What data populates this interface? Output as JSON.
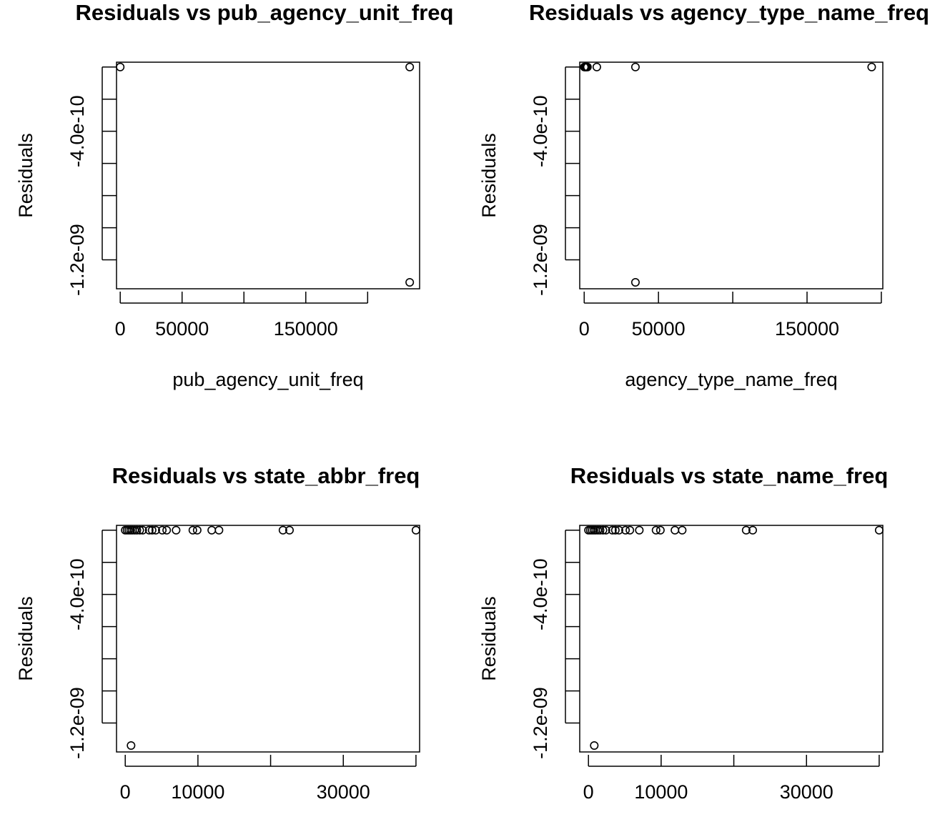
{
  "chart_data": [
    {
      "type": "scatter",
      "title": "Residuals vs pub_agency_unit_freq",
      "xlabel": "pub_agency_unit_freq",
      "ylabel": "Residuals",
      "xlim": [
        -3000,
        242000
      ],
      "ylim": [
        -1.38e-09,
        3e-11
      ],
      "xticks": [
        0,
        50000,
        100000,
        150000,
        200000
      ],
      "xtick_labels": [
        "0",
        "50000",
        "",
        "150000",
        ""
      ],
      "yticks": [
        0,
        -2e-10,
        -4e-10,
        -6e-10,
        -8e-10,
        -1e-09,
        -1.2e-09
      ],
      "ytick_labels": [
        "",
        "",
        "-4.0e-10",
        "",
        "",
        "",
        "-1.2e-09"
      ],
      "points": [
        [
          0,
          0
        ],
        [
          234000,
          0
        ],
        [
          234000,
          -1.34e-09
        ]
      ]
    },
    {
      "type": "scatter",
      "title": "Residuals vs agency_type_name_freq",
      "xlabel": "agency_type_name_freq",
      "ylabel": "Residuals",
      "xlim": [
        -3000,
        201000
      ],
      "ylim": [
        -1.38e-09,
        3e-11
      ],
      "xticks": [
        0,
        50000,
        100000,
        150000,
        200000
      ],
      "xtick_labels": [
        "0",
        "50000",
        "",
        "150000",
        ""
      ],
      "yticks": [
        0,
        -2e-10,
        -4e-10,
        -6e-10,
        -8e-10,
        -1e-09,
        -1.2e-09
      ],
      "ytick_labels": [
        "",
        "",
        "-4.0e-10",
        "",
        "",
        "",
        "-1.2e-09"
      ],
      "points": [
        [
          100,
          0
        ],
        [
          500,
          0
        ],
        [
          1000,
          0
        ],
        [
          1600,
          0
        ],
        [
          2200,
          0
        ],
        [
          8500,
          0
        ],
        [
          34500,
          0
        ],
        [
          193500,
          0
        ],
        [
          34500,
          -1.34e-09
        ]
      ]
    },
    {
      "type": "scatter",
      "title": "Residuals vs state_abbr_freq",
      "xlabel": "",
      "ylabel": "Residuals",
      "xlim": [
        -1200,
        40500
      ],
      "ylim": [
        -1.38e-09,
        3e-11
      ],
      "xticks": [
        0,
        10000,
        20000,
        30000,
        40000
      ],
      "xtick_labels": [
        "0",
        "10000",
        "",
        "30000",
        ""
      ],
      "yticks": [
        0,
        -2e-10,
        -4e-10,
        -6e-10,
        -8e-10,
        -1e-09,
        -1.2e-09
      ],
      "ytick_labels": [
        "",
        "",
        "-4.0e-10",
        "",
        "",
        "",
        "-1.2e-09"
      ],
      "points": [
        [
          0,
          0
        ],
        [
          250,
          0
        ],
        [
          500,
          0
        ],
        [
          750,
          0
        ],
        [
          1000,
          0
        ],
        [
          1300,
          0
        ],
        [
          1600,
          0
        ],
        [
          2000,
          0
        ],
        [
          2400,
          0
        ],
        [
          3300,
          0
        ],
        [
          3700,
          0
        ],
        [
          4200,
          0
        ],
        [
          5100,
          0
        ],
        [
          5700,
          0
        ],
        [
          7000,
          0
        ],
        [
          9300,
          0
        ],
        [
          9900,
          0
        ],
        [
          11900,
          0
        ],
        [
          12900,
          0
        ],
        [
          21700,
          0
        ],
        [
          22600,
          0
        ],
        [
          40000,
          0
        ],
        [
          800,
          -1.34e-09
        ]
      ]
    },
    {
      "type": "scatter",
      "title": "Residuals vs state_name_freq",
      "xlabel": "",
      "ylabel": "Residuals",
      "xlim": [
        -1200,
        40500
      ],
      "ylim": [
        -1.38e-09,
        3e-11
      ],
      "xticks": [
        0,
        10000,
        20000,
        30000,
        40000
      ],
      "xtick_labels": [
        "0",
        "10000",
        "",
        "30000",
        ""
      ],
      "yticks": [
        0,
        -2e-10,
        -4e-10,
        -6e-10,
        -8e-10,
        -1e-09,
        -1.2e-09
      ],
      "ytick_labels": [
        "",
        "",
        "-4.0e-10",
        "",
        "",
        "",
        "-1.2e-09"
      ],
      "points": [
        [
          0,
          0
        ],
        [
          250,
          0
        ],
        [
          500,
          0
        ],
        [
          750,
          0
        ],
        [
          1000,
          0
        ],
        [
          1300,
          0
        ],
        [
          1600,
          0
        ],
        [
          2000,
          0
        ],
        [
          2400,
          0
        ],
        [
          3300,
          0
        ],
        [
          3700,
          0
        ],
        [
          4200,
          0
        ],
        [
          5100,
          0
        ],
        [
          5700,
          0
        ],
        [
          7000,
          0
        ],
        [
          9300,
          0
        ],
        [
          9900,
          0
        ],
        [
          11900,
          0
        ],
        [
          12900,
          0
        ],
        [
          21700,
          0
        ],
        [
          22600,
          0
        ],
        [
          40000,
          0
        ],
        [
          800,
          -1.34e-09
        ]
      ]
    }
  ]
}
